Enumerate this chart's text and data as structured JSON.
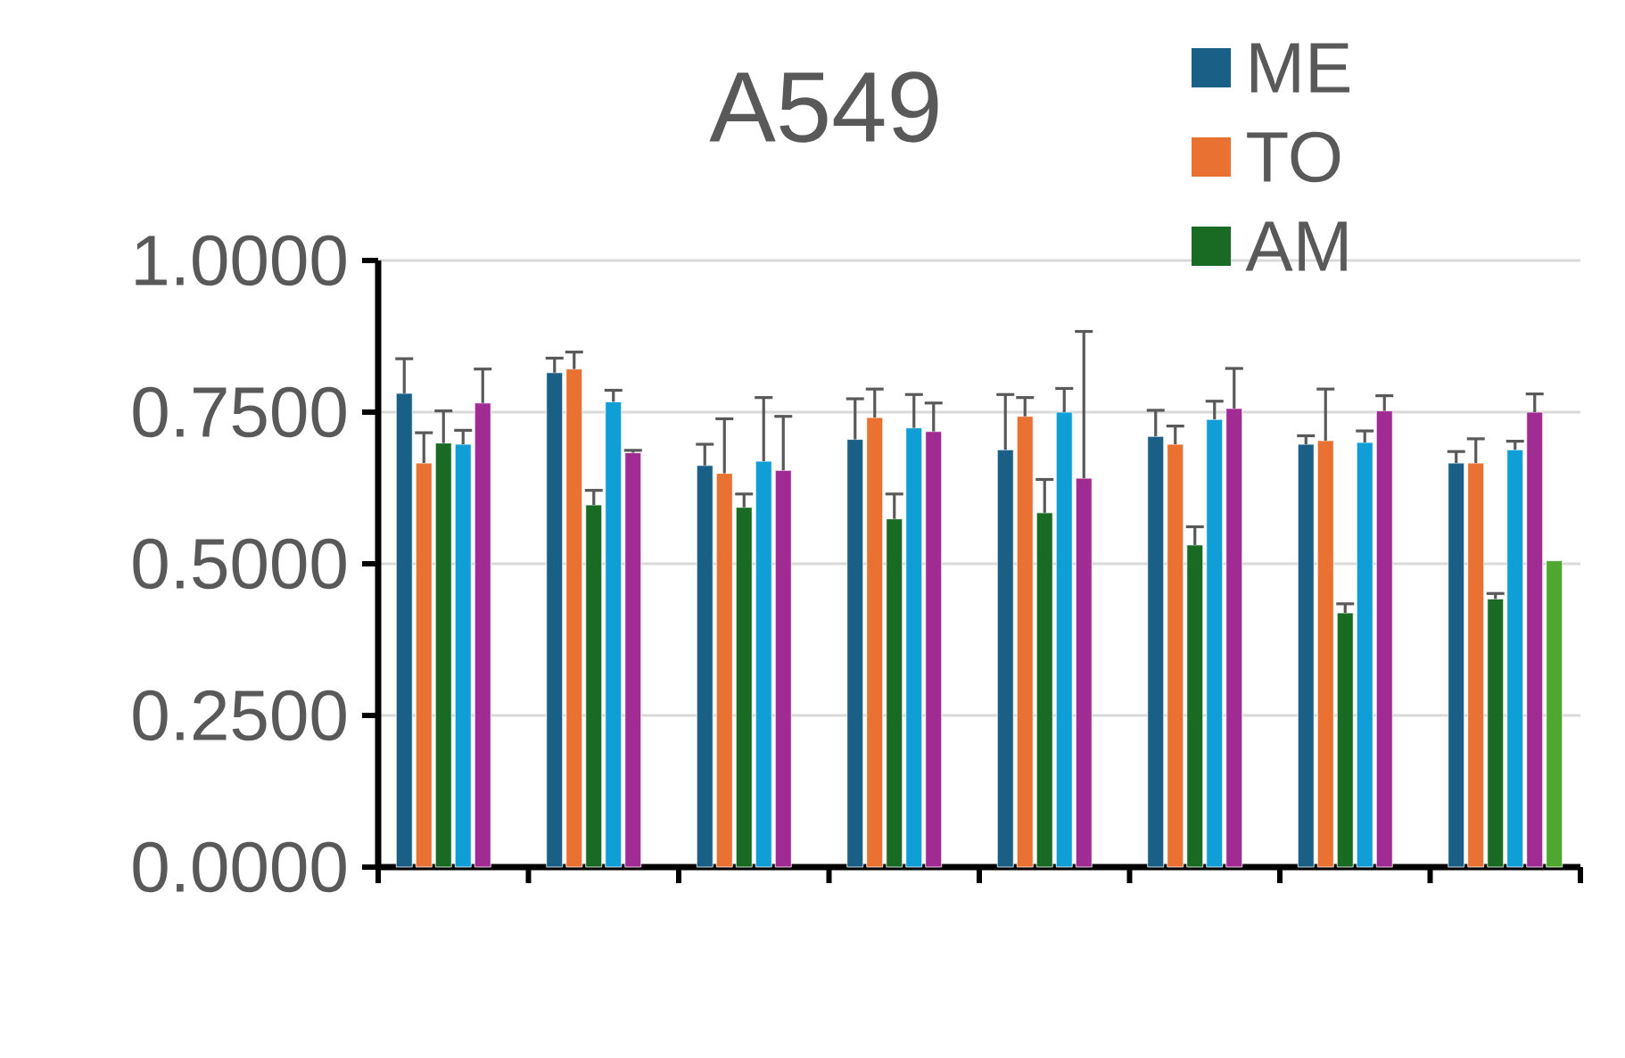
{
  "chart_data": {
    "type": "bar",
    "title": "A549",
    "categories": [
      null,
      null,
      null,
      null,
      null,
      null,
      null,
      null
    ],
    "ylim": [
      0,
      1
    ],
    "yticks": [
      {
        "value": 0,
        "label": "0.0000"
      },
      {
        "value": 0.25,
        "label": "0.2500"
      },
      {
        "value": 0.5,
        "label": "0.5000"
      },
      {
        "value": 0.75,
        "label": "0.7500"
      },
      {
        "value": 1,
        "label": "1.0000"
      }
    ],
    "grid": "y",
    "legend": "top right",
    "series": [
      {
        "name": "ME",
        "color": "#1a5f86",
        "values": [
          0.781,
          0.815,
          0.662,
          0.705,
          0.688,
          0.71,
          0.697,
          0.666
        ],
        "errors": [
          [
            0.781,
            0.838
          ],
          [
            0.815,
            0.839
          ],
          [
            0.662,
            0.697
          ],
          [
            0.705,
            0.772
          ],
          [
            0.688,
            0.779
          ],
          [
            0.71,
            0.753
          ],
          [
            0.697,
            0.711
          ],
          [
            0.666,
            0.685
          ]
        ]
      },
      {
        "name": "TO",
        "color": "#e97132",
        "values": [
          0.666,
          0.821,
          0.649,
          0.741,
          0.743,
          0.697,
          0.703,
          0.666
        ],
        "errors": [
          [
            0.666,
            0.716
          ],
          [
            0.821,
            0.849
          ],
          [
            0.649,
            0.739
          ],
          [
            0.741,
            0.788
          ],
          [
            0.743,
            0.774
          ],
          [
            0.697,
            0.727
          ],
          [
            0.703,
            0.788
          ],
          [
            0.666,
            0.706
          ]
        ]
      },
      {
        "name": "AM",
        "color": "#196b24",
        "values": [
          0.699,
          0.597,
          0.593,
          0.574,
          0.584,
          0.531,
          0.419,
          0.442
        ],
        "errors": [
          [
            0.699,
            0.752
          ],
          [
            0.597,
            0.621
          ],
          [
            0.593,
            0.615
          ],
          [
            0.574,
            0.615
          ],
          [
            0.584,
            0.639
          ],
          [
            0.531,
            0.561
          ],
          [
            0.419,
            0.434
          ],
          [
            0.442,
            0.451
          ]
        ]
      },
      {
        "color": "#0f9ed5",
        "values": [
          0.697,
          0.767,
          0.669,
          0.724,
          0.75,
          0.738,
          0.7,
          0.688
        ],
        "errors": [
          [
            0.697,
            0.72
          ],
          [
            0.767,
            0.786
          ],
          [
            0.669,
            0.774
          ],
          [
            0.724,
            0.779
          ],
          [
            0.75,
            0.789
          ],
          [
            0.738,
            0.768
          ],
          [
            0.7,
            0.719
          ],
          [
            0.688,
            0.702
          ]
        ]
      },
      {
        "color": "#a02b93",
        "values": [
          0.765,
          0.683,
          0.654,
          0.718,
          0.641,
          0.756,
          0.752,
          0.75
        ],
        "errors": [
          [
            0.765,
            0.821
          ],
          [
            0.683,
            0.687
          ],
          [
            0.654,
            0.743
          ],
          [
            0.718,
            0.765
          ],
          [
            0.641,
            0.883
          ],
          [
            0.756,
            0.822
          ],
          [
            0.752,
            0.777
          ],
          [
            0.75,
            0.78
          ]
        ]
      },
      {
        "color": "#4ea72e",
        "values": [
          null,
          null,
          null,
          null,
          null,
          null,
          null,
          0.505
        ]
      }
    ]
  }
}
